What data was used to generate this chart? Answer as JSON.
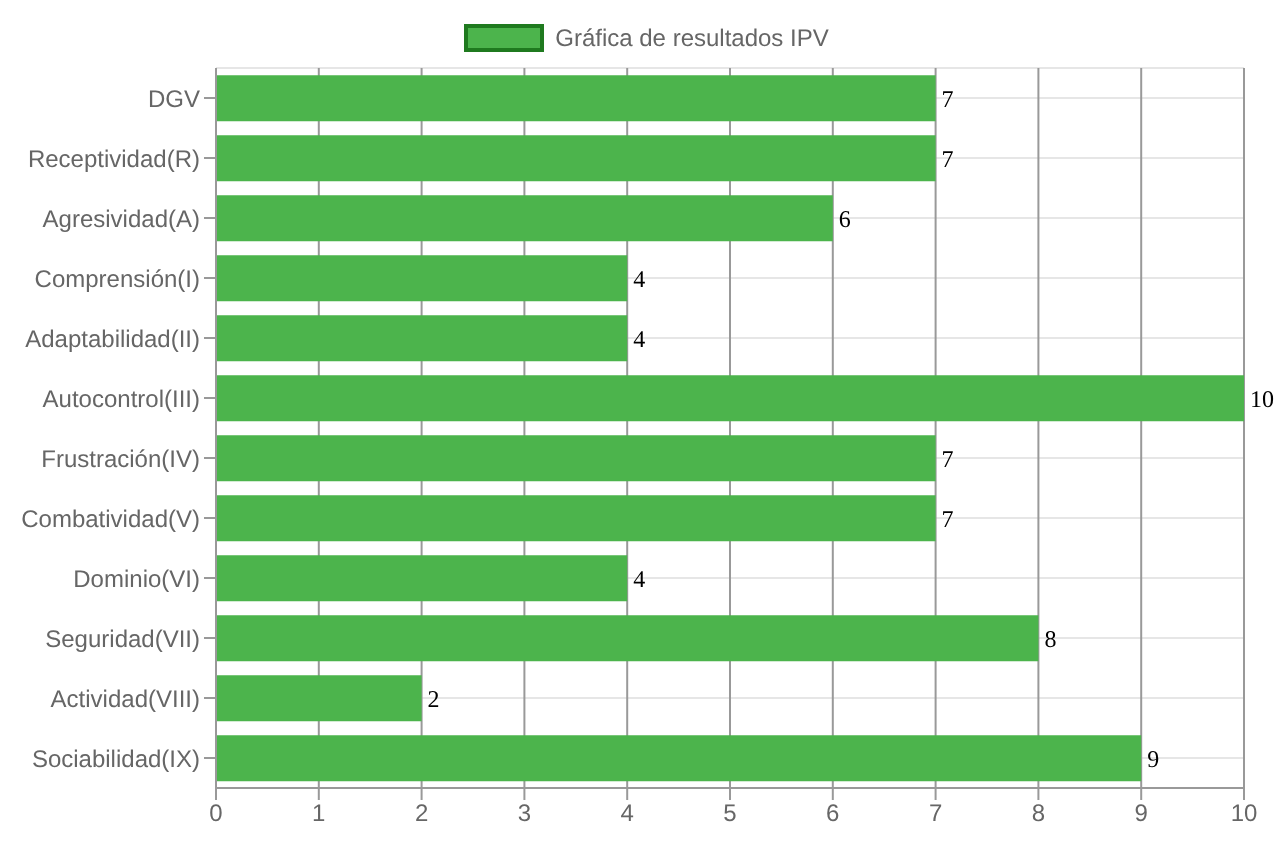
{
  "chart_data": {
    "type": "bar",
    "orientation": "horizontal",
    "categories": [
      "DGV",
      "Receptividad(R)",
      "Agresividad(A)",
      "Comprensión(I)",
      "Adaptabilidad(II)",
      "Autocontrol(III)",
      "Frustración(IV)",
      "Combatividad(V)",
      "Dominio(VI)",
      "Seguridad(VII)",
      "Actividad(VIII)",
      "Sociabilidad(IX)"
    ],
    "series": [
      {
        "name": "Gráfica de resultados IPV",
        "color": "#4cb44c",
        "values": [
          7,
          7,
          6,
          4,
          4,
          10,
          7,
          7,
          4,
          8,
          2,
          9
        ]
      }
    ],
    "xlim": [
      0,
      10
    ],
    "xticks": [
      0,
      1,
      2,
      3,
      4,
      5,
      6,
      7,
      8,
      9,
      10
    ],
    "grid": true,
    "legend": "top",
    "data_labels": true
  }
}
